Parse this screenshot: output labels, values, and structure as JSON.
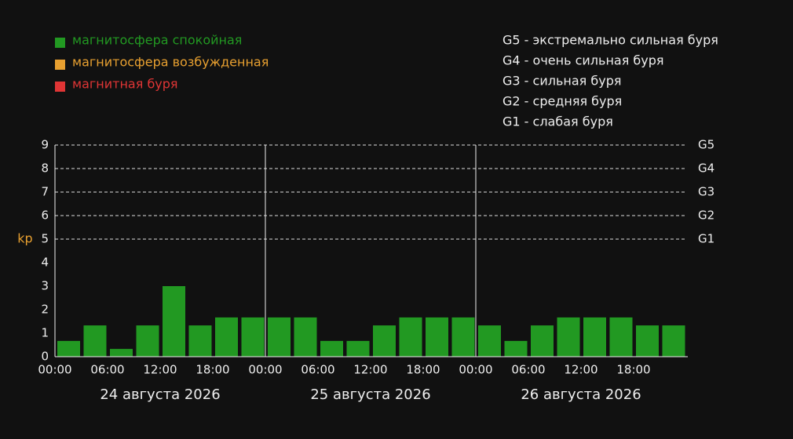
{
  "chart_data": {
    "type": "bar",
    "y_label": "kp",
    "legend": [
      {
        "label": "магнитосфера спокойная",
        "color": "#229922"
      },
      {
        "label": "магнитосфера возбужденная",
        "color": "#e8a030"
      },
      {
        "label": "магнитная буря",
        "color": "#e03535"
      }
    ],
    "storm_scale": [
      "G5 - экстремально сильная буря",
      "G4 - очень сильная буря",
      "G3 - сильная буря",
      "G2 - средняя буря",
      "G1 - слабая буря"
    ],
    "g_levels": [
      {
        "value": 9,
        "label": "G5"
      },
      {
        "value": 8,
        "label": "G4"
      },
      {
        "value": 7,
        "label": "G3"
      },
      {
        "value": 6,
        "label": "G2"
      },
      {
        "value": 5,
        "label": "G1"
      }
    ],
    "days": [
      "24 августа 2026",
      "25 августа 2026",
      "26 августа 2026"
    ],
    "xtick_labels": [
      "00:00",
      "06:00",
      "12:00",
      "18:00",
      "00:00",
      "06:00",
      "12:00",
      "18:00",
      "00:00",
      "06:00",
      "12:00",
      "18:00"
    ],
    "values": [
      0.67,
      1.33,
      0.33,
      1.33,
      3,
      1.33,
      1.67,
      1.67,
      1.67,
      1.67,
      0.67,
      0.67,
      1.33,
      1.67,
      1.67,
      1.67,
      1.33,
      0.67,
      1.33,
      1.67,
      1.67,
      1.67,
      1.33,
      1.33
    ],
    "color": "#229922",
    "ylim": [
      0,
      9
    ],
    "yticks": [
      0,
      1,
      2,
      3,
      4,
      5,
      6,
      7,
      8,
      9
    ]
  }
}
